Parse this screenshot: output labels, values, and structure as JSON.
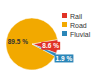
{
  "chart_data": {
    "type": "pie",
    "categories": [
      "Rail",
      "Road",
      "Fluvial"
    ],
    "values": [
      8.6,
      89.5,
      1.9
    ],
    "value_labels": [
      "8.6 %",
      "89.5 %",
      "1.9 %"
    ],
    "colors": [
      "#e03326",
      "#f2a900",
      "#2b86b8"
    ],
    "data_labels": true,
    "legend": "upper right"
  }
}
